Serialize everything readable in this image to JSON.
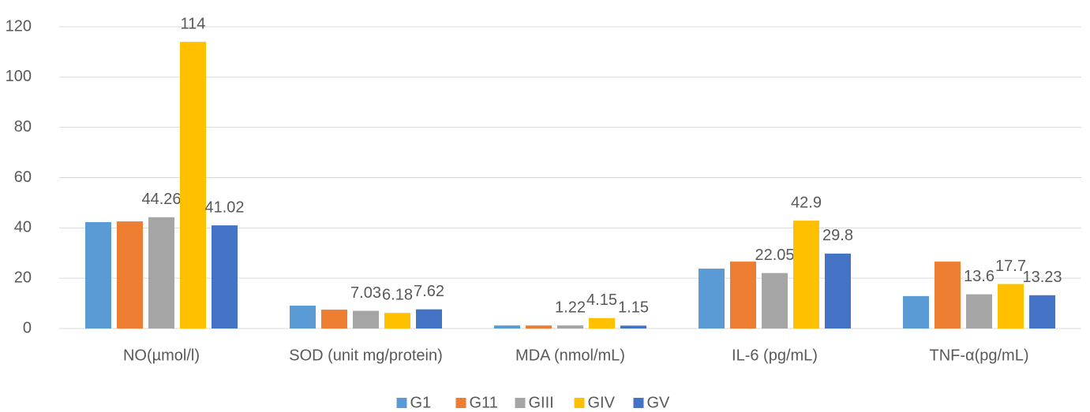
{
  "chart_data": {
    "type": "bar",
    "categories": [
      "NO(µmol/l)",
      "SOD (unit mg/protein)",
      "MDA (nmol/mL)",
      "IL-6 (pg/mL)",
      "TNF-α(pg/mL)"
    ],
    "series": [
      {
        "name": "G1",
        "color": "#5b9bd5",
        "values": [
          42.3,
          9.1,
          1.2,
          23.8,
          12.9
        ],
        "value_labels": [
          null,
          null,
          null,
          null,
          null
        ]
      },
      {
        "name": "G11",
        "color": "#ed7d31",
        "values": [
          42.6,
          7.5,
          1.2,
          26.6,
          26.6
        ],
        "value_labels": [
          null,
          null,
          null,
          null,
          null
        ]
      },
      {
        "name": "GIII",
        "color": "#a5a5a5",
        "values": [
          44.26,
          7.03,
          1.22,
          22.05,
          13.6
        ],
        "value_labels": [
          "44.26",
          "7.03",
          "1.22",
          "22.05",
          "13.6"
        ]
      },
      {
        "name": "GIV",
        "color": "#ffc000",
        "values": [
          114,
          6.18,
          4.15,
          42.9,
          17.7
        ],
        "value_labels": [
          "114",
          "6.18",
          "4.15",
          "42.9",
          "17.7"
        ]
      },
      {
        "name": "GV",
        "color": "#4472c4",
        "values": [
          41.02,
          7.62,
          1.15,
          29.8,
          13.23
        ],
        "value_labels": [
          "41.02",
          "7.62",
          "1.15",
          "29.8",
          "13.23"
        ]
      }
    ],
    "ylim": [
      0,
      120
    ],
    "yticks": [
      0,
      20,
      40,
      60,
      80,
      100,
      120
    ],
    "grid": true,
    "legend": "bottom"
  }
}
